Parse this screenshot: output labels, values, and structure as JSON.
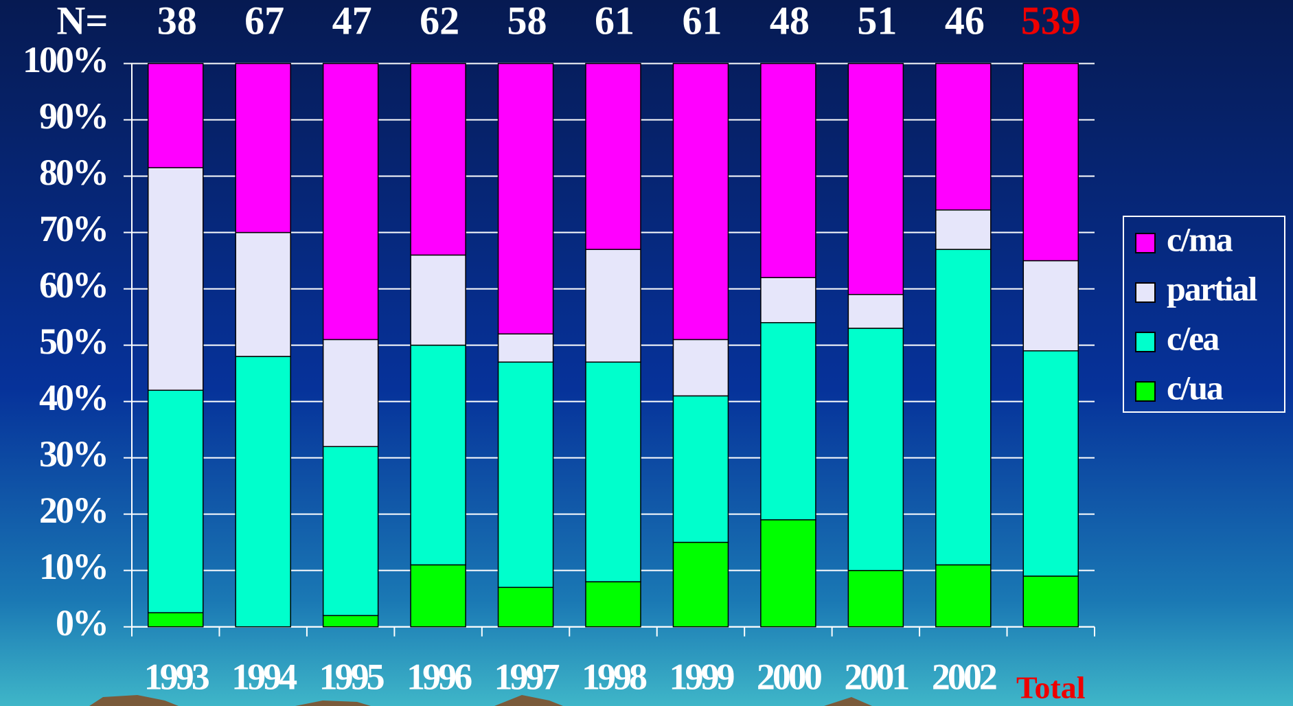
{
  "chart_data": {
    "type": "stacked_bar",
    "n_label": "N=",
    "n_values": [
      38,
      67,
      47,
      62,
      58,
      61,
      61,
      48,
      51,
      46,
      539
    ],
    "categories": [
      "1993",
      "1994",
      "1995",
      "1996",
      "1997",
      "1998",
      "1999",
      "2000",
      "2001",
      "2002",
      "Total"
    ],
    "highlight_color": "#ee0000",
    "series": [
      {
        "name": "c/ua",
        "color": "#00ff00",
        "values": [
          2.5,
          0,
          2,
          11,
          7,
          8,
          15,
          19,
          10,
          11,
          9
        ]
      },
      {
        "name": "c/ea",
        "color": "#00ffcc",
        "values": [
          39.5,
          48,
          30,
          39,
          40,
          39,
          26,
          35,
          43,
          56,
          40
        ]
      },
      {
        "name": "partial",
        "color": "#e6e6fa",
        "values": [
          39.5,
          22,
          19,
          16,
          5,
          20,
          10,
          8,
          6,
          7,
          16
        ]
      },
      {
        "name": "c/ma",
        "color": "#ff00ff",
        "values": [
          18.5,
          30,
          49,
          34,
          48,
          33,
          49,
          38,
          41,
          26,
          35
        ]
      }
    ],
    "ylim": [
      0,
      100
    ],
    "yticks": [
      {
        "value": 0,
        "label": "0%"
      },
      {
        "value": 10,
        "label": "10%"
      },
      {
        "value": 20,
        "label": "20%"
      },
      {
        "value": 30,
        "label": "30%"
      },
      {
        "value": 40,
        "label": "40%"
      },
      {
        "value": 50,
        "label": "50%"
      },
      {
        "value": 60,
        "label": "60%"
      },
      {
        "value": 70,
        "label": "70%"
      },
      {
        "value": 80,
        "label": "80%"
      },
      {
        "value": 90,
        "label": "90%"
      },
      {
        "value": 100,
        "label": "100%"
      }
    ],
    "grid": true,
    "legend": "right"
  }
}
